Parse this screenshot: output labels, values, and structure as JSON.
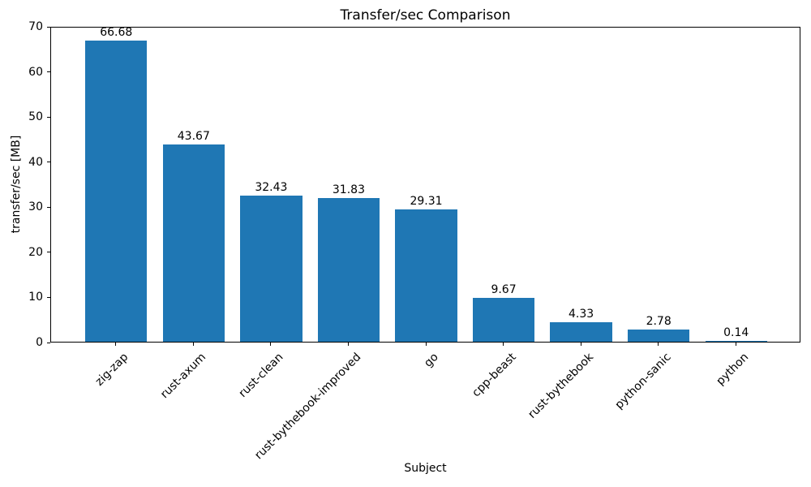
{
  "chart_data": {
    "type": "bar",
    "title": "Transfer/sec Comparison",
    "xlabel": "Subject",
    "ylabel": "transfer/sec [MB]",
    "categories": [
      "zig-zap",
      "rust-axum",
      "rust-clean",
      "rust-bythebook-improved",
      "go",
      "cpp-beast",
      "rust-bythebook",
      "python-sanic",
      "python"
    ],
    "values": [
      66.68,
      43.67,
      32.43,
      31.83,
      29.31,
      9.67,
      4.33,
      2.78,
      0.14
    ],
    "value_labels": [
      "66.68",
      "43.67",
      "32.43",
      "31.83",
      "29.31",
      "9.67",
      "4.33",
      "2.78",
      "0.14"
    ],
    "ylim": [
      0,
      70
    ],
    "yticks": [
      0,
      10,
      20,
      30,
      40,
      50,
      60,
      70
    ],
    "bar_color": "#1f77b4",
    "text_color": "#000000",
    "xtick_rotation": 45,
    "bar_width_fraction": 0.8,
    "grid": false,
    "legend_position": "none"
  }
}
